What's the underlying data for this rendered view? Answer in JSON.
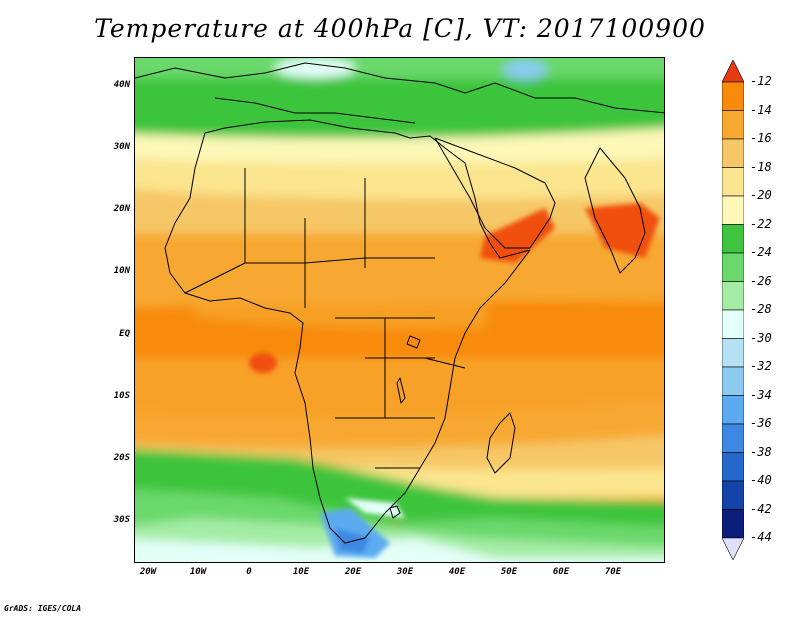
{
  "title": "Temperature at 400hPa [C], VT: 2017100900",
  "footer": "GrADS: IGES/COLA",
  "map": {
    "lat_labels": [
      "40N",
      "30N",
      "20N",
      "10N",
      "EQ",
      "10S",
      "20S",
      "30S"
    ],
    "lon_labels": [
      "20W",
      "10W",
      "0",
      "10E",
      "20E",
      "30E",
      "40E",
      "50E",
      "60E",
      "70E"
    ],
    "lat_range": [
      -36,
      44
    ],
    "lon_range": [
      -23,
      80
    ]
  },
  "colorbar": {
    "levels": [
      "-12",
      "-14",
      "-16",
      "-18",
      "-20",
      "-22",
      "-24",
      "-26",
      "-28",
      "-30",
      "-32",
      "-34",
      "-36",
      "-38",
      "-40",
      "-42",
      "-44"
    ],
    "colors": [
      "#f05010",
      "#f88a0c",
      "#f7a830",
      "#f6c766",
      "#fbe58e",
      "#fdf8b8",
      "#3ec43e",
      "#6ad86a",
      "#a4eca4",
      "#e2fff8",
      "#b4e2f4",
      "#8ccaf0",
      "#5caaf0",
      "#3c88e2",
      "#2468cc",
      "#1444aa",
      "#0c1e7c"
    ],
    "top_arrow_color": "#e63c14",
    "bottom_arrow_color": "#e0e0f8"
  }
}
